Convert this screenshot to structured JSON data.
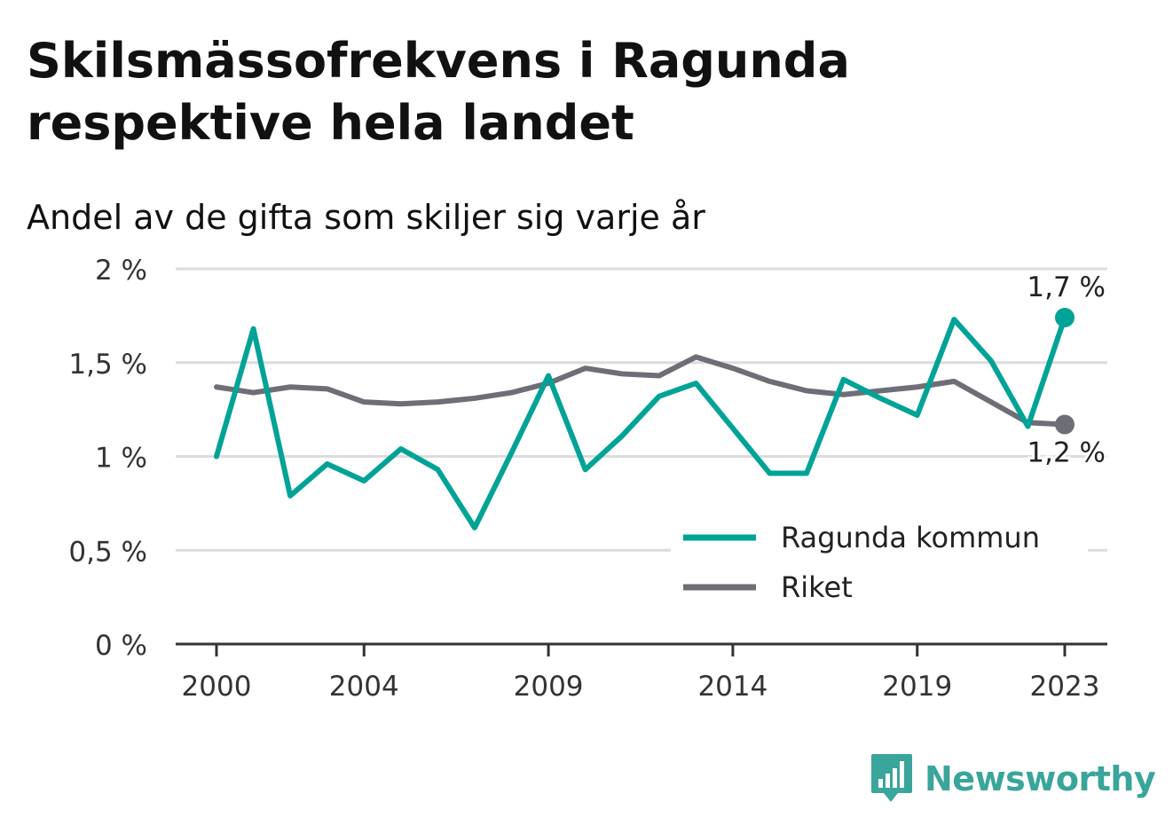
{
  "title": "Skilsmässofrekvens i Ragunda respektive hela landet",
  "subtitle": "Andel av de gifta som skiljer sig varje år",
  "brand": {
    "name": "Newsworthy",
    "icon": "bar-chart-speech-bubble-icon",
    "color": "#3aa59a"
  },
  "colors": {
    "ragunda": "#00a396",
    "riket": "#6e6e76",
    "grid": "#dcdcdc",
    "axis": "#333333"
  },
  "chart_data": {
    "type": "line",
    "x": [
      2000,
      2001,
      2002,
      2003,
      2004,
      2005,
      2006,
      2007,
      2008,
      2009,
      2010,
      2011,
      2012,
      2013,
      2014,
      2015,
      2016,
      2017,
      2018,
      2019,
      2020,
      2021,
      2022,
      2023
    ],
    "x_ticks": [
      2000,
      2004,
      2009,
      2014,
      2019,
      2023
    ],
    "x_tick_labels": [
      "2000",
      "2004",
      "2009",
      "2014",
      "2019",
      "2023"
    ],
    "y_ticks": [
      0,
      0.5,
      1,
      1.5,
      2
    ],
    "y_tick_labels": [
      "0 %",
      "0,5 %",
      "1 %",
      "1,5 %",
      "2 %"
    ],
    "ylim": [
      0,
      2
    ],
    "grid": true,
    "legend_position": "bottom-right",
    "series": [
      {
        "name": "Ragunda kommun",
        "color": "#00a396",
        "values": [
          1.0,
          1.68,
          0.79,
          0.96,
          0.87,
          1.04,
          0.93,
          0.62,
          1.02,
          1.43,
          0.93,
          1.11,
          1.32,
          1.39,
          1.15,
          0.91,
          0.91,
          1.41,
          1.31,
          1.22,
          1.73,
          1.51,
          1.16,
          1.74
        ],
        "end_label": "1,7 %"
      },
      {
        "name": "Riket",
        "color": "#6e6e76",
        "values": [
          1.37,
          1.34,
          1.37,
          1.36,
          1.29,
          1.28,
          1.29,
          1.31,
          1.34,
          1.39,
          1.47,
          1.44,
          1.43,
          1.53,
          1.47,
          1.4,
          1.35,
          1.33,
          1.35,
          1.37,
          1.4,
          1.29,
          1.18,
          1.17
        ],
        "end_label": "1,2 %"
      }
    ]
  }
}
